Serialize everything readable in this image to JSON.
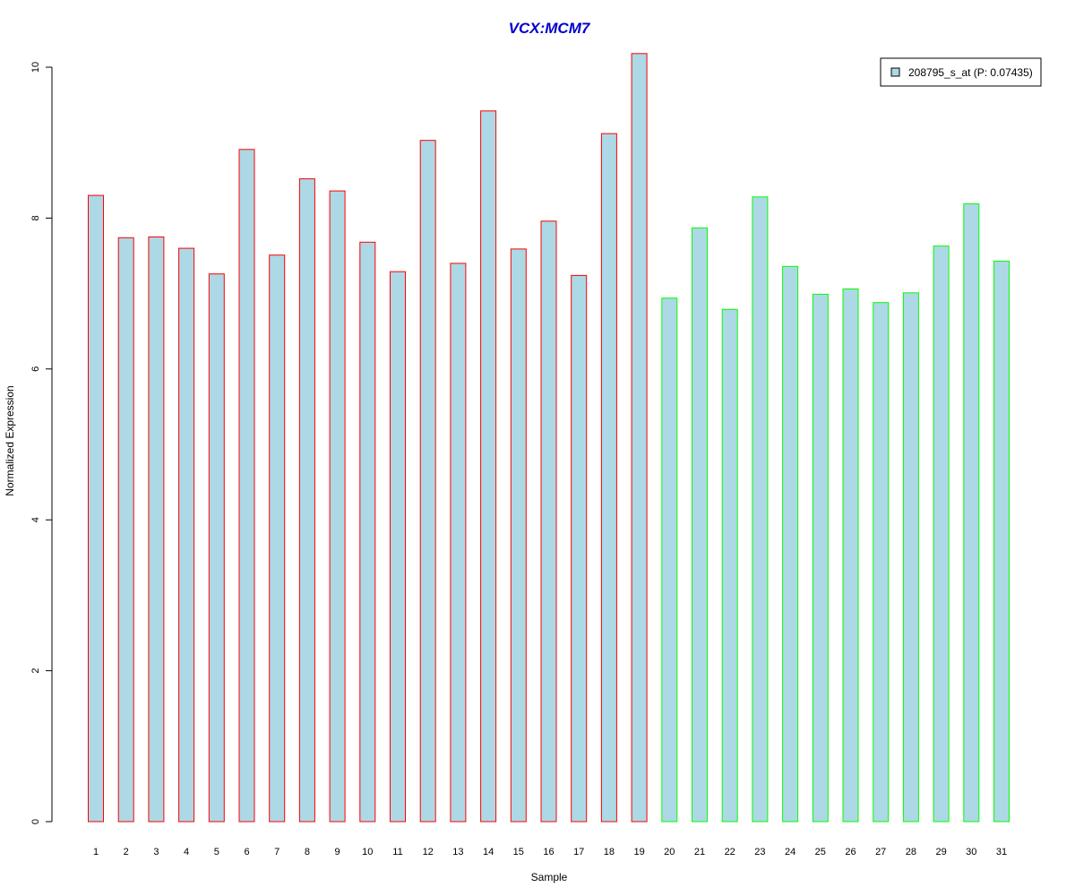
{
  "chart_data": {
    "type": "bar",
    "title": "VCX:MCM7",
    "xlabel": "Sample",
    "ylabel": "Normalized Expression",
    "ylim": [
      0,
      10
    ],
    "yticks": [
      0,
      2,
      4,
      6,
      8,
      10
    ],
    "grid": false,
    "legend_position": "top-right",
    "categories": [
      "1",
      "2",
      "3",
      "4",
      "5",
      "6",
      "7",
      "8",
      "9",
      "10",
      "11",
      "12",
      "13",
      "14",
      "15",
      "16",
      "17",
      "18",
      "19",
      "20",
      "21",
      "22",
      "23",
      "24",
      "25",
      "26",
      "27",
      "28",
      "29",
      "30",
      "31"
    ],
    "series": [
      {
        "name": "208795_s_at (P: 0.07435)",
        "values": [
          8.3,
          7.74,
          7.75,
          7.6,
          7.26,
          8.91,
          7.51,
          8.52,
          8.36,
          7.68,
          7.29,
          9.03,
          7.4,
          9.42,
          7.59,
          7.96,
          7.24,
          9.12,
          10.18,
          6.94,
          7.87,
          6.79,
          8.28,
          7.36,
          6.99,
          7.06,
          6.88,
          7.01,
          7.63,
          8.19,
          7.43
        ]
      }
    ],
    "bar_group": [
      1,
      1,
      1,
      1,
      1,
      1,
      1,
      1,
      1,
      1,
      1,
      1,
      1,
      1,
      1,
      1,
      1,
      1,
      1,
      2,
      2,
      2,
      2,
      2,
      2,
      2,
      2,
      2,
      2,
      2,
      2
    ],
    "colors": {
      "bar_fill": "#add8e6",
      "group1_border": "#ff0000",
      "group2_border": "#00ff00",
      "title": "#0000cd",
      "axis": "#000000"
    }
  }
}
